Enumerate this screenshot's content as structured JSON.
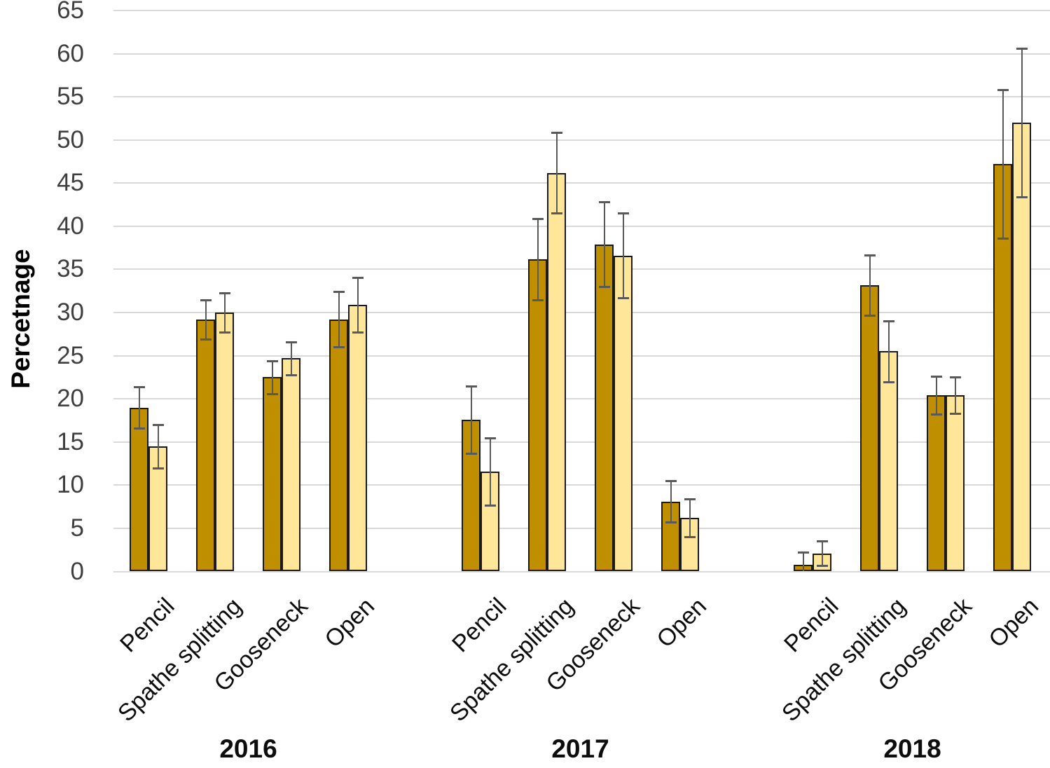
{
  "chart_data": {
    "type": "bar",
    "title": "",
    "xlabel": "",
    "ylabel": "Percetnage",
    "ylim": [
      0,
      65
    ],
    "yticks": [
      0,
      5,
      10,
      15,
      20,
      25,
      30,
      35,
      40,
      45,
      50,
      55,
      60,
      65
    ],
    "grid": true,
    "legend_position": "none",
    "error_bars": true,
    "categories": [
      "Pencil",
      "Spathe splitting",
      "Gooseneck",
      "Open"
    ],
    "groups": [
      {
        "label": "2016",
        "series": [
          {
            "name": "dark-gold",
            "values": [
              19.0,
              29.2,
              22.5,
              29.2
            ],
            "errors": [
              2.4,
              2.3,
              1.9,
              3.2
            ]
          },
          {
            "name": "light-gold",
            "values": [
              14.5,
              30.0,
              24.7,
              30.9
            ],
            "errors": [
              2.5,
              2.3,
              1.9,
              3.2
            ]
          }
        ]
      },
      {
        "label": "2017",
        "series": [
          {
            "name": "dark-gold",
            "values": [
              17.6,
              36.2,
              37.9,
              8.1
            ],
            "errors": [
              3.9,
              4.7,
              4.9,
              2.4
            ]
          },
          {
            "name": "light-gold",
            "values": [
              11.6,
              46.2,
              36.6,
              6.2
            ],
            "errors": [
              3.9,
              4.7,
              4.9,
              2.2
            ]
          }
        ]
      },
      {
        "label": "2018",
        "series": [
          {
            "name": "dark-gold",
            "values": [
              0.8,
              33.2,
              20.4,
              47.2
            ],
            "errors": [
              1.4,
              3.5,
              2.2,
              8.6
            ]
          },
          {
            "name": "light-gold",
            "values": [
              2.1,
              25.5,
              20.4,
              52.0
            ],
            "errors": [
              1.4,
              3.5,
              2.1,
              8.6
            ]
          }
        ]
      }
    ],
    "colors": {
      "series_dark": "#BF8F00",
      "series_light": "#FFE699",
      "bar_border": "#1a1a1a",
      "error_bar": "#595959",
      "gridline": "#d9d9d9",
      "tick_text": "#3f3f3f",
      "label_text": "#0d0d0d"
    }
  }
}
